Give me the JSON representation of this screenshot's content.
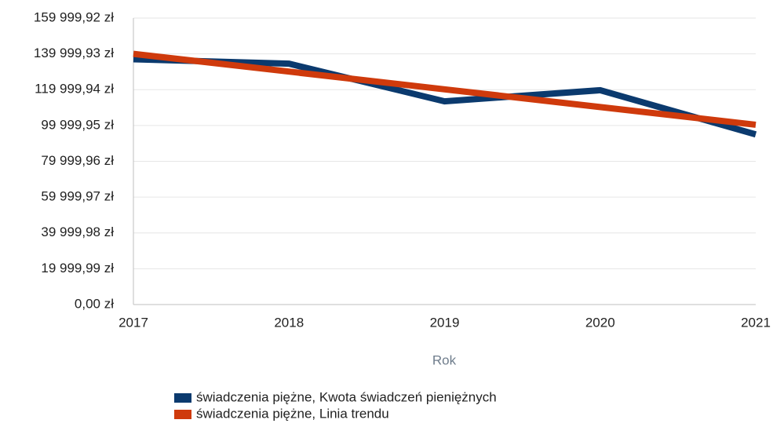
{
  "chart_data": {
    "type": "line",
    "x_label": "Rok",
    "categories": [
      "2017",
      "2018",
      "2019",
      "2020",
      "2021"
    ],
    "series": [
      {
        "name": "świadczenia piężne, Kwota świadczeń pieniężnych",
        "color": "#0b3a6e",
        "values": [
          137000,
          134500,
          113500,
          119700,
          95000
        ]
      },
      {
        "name": "świadczenia piężne, Linia trendu",
        "color": "#cf3a0c",
        "values": [
          140000,
          130100,
          120200,
          110300,
          100400
        ]
      }
    ],
    "ylim": [
      0,
      159999.92
    ],
    "yticks": [
      {
        "value": 0,
        "label": "0,00 zł"
      },
      {
        "value": 19999.99,
        "label": "19 999,99 zł"
      },
      {
        "value": 39999.98,
        "label": "39 999,98 zł"
      },
      {
        "value": 59999.97,
        "label": "59 999,97 zł"
      },
      {
        "value": 79999.96,
        "label": "79 999,96 zł"
      },
      {
        "value": 99999.95,
        "label": "99 999,95 zł"
      },
      {
        "value": 119999.94,
        "label": "119 999,94 zł"
      },
      {
        "value": 139999.93,
        "label": "139 999,93 zł"
      },
      {
        "value": 159999.92,
        "label": "159 999,92 zł"
      }
    ],
    "grid": true,
    "legend": "bottom"
  }
}
